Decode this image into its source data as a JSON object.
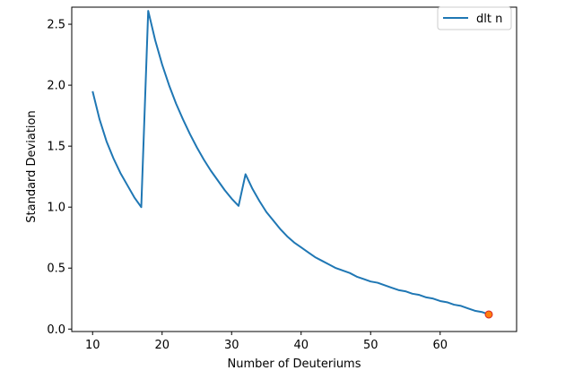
{
  "chart_data": {
    "type": "line",
    "title": "",
    "xlabel": "Number of Deuteriums",
    "ylabel": "Standard Deviation",
    "xlim": [
      7,
      71
    ],
    "ylim": [
      -0.02,
      2.64
    ],
    "xticks": [
      10,
      20,
      30,
      40,
      50,
      60
    ],
    "yticks": [
      0.0,
      0.5,
      1.0,
      1.5,
      2.0,
      2.5
    ],
    "grid": false,
    "legend_position": "top-right",
    "series": [
      {
        "name": "dlt n",
        "color": "#1f77b4",
        "x": [
          10,
          11,
          12,
          13,
          14,
          15,
          16,
          17,
          18,
          19,
          20,
          21,
          22,
          23,
          24,
          25,
          26,
          27,
          28,
          29,
          30,
          31,
          32,
          33,
          34,
          35,
          36,
          37,
          38,
          39,
          40,
          41,
          42,
          43,
          44,
          45,
          46,
          47,
          48,
          49,
          50,
          51,
          52,
          53,
          54,
          55,
          56,
          57,
          58,
          59,
          60,
          61,
          62,
          63,
          64,
          65,
          66,
          67
        ],
        "y": [
          1.95,
          1.72,
          1.54,
          1.4,
          1.28,
          1.18,
          1.08,
          1.0,
          2.61,
          2.37,
          2.17,
          2.0,
          1.85,
          1.72,
          1.6,
          1.49,
          1.39,
          1.3,
          1.22,
          1.14,
          1.07,
          1.01,
          1.27,
          1.15,
          1.05,
          0.96,
          0.89,
          0.82,
          0.76,
          0.71,
          0.67,
          0.63,
          0.59,
          0.56,
          0.53,
          0.5,
          0.48,
          0.46,
          0.43,
          0.41,
          0.39,
          0.38,
          0.36,
          0.34,
          0.32,
          0.31,
          0.29,
          0.28,
          0.26,
          0.25,
          0.23,
          0.22,
          0.2,
          0.19,
          0.17,
          0.15,
          0.14,
          0.12
        ]
      }
    ],
    "highlight_point": {
      "x": 67,
      "y": 0.12,
      "fill": "#ff7f0e",
      "edge": "#d62728"
    }
  }
}
